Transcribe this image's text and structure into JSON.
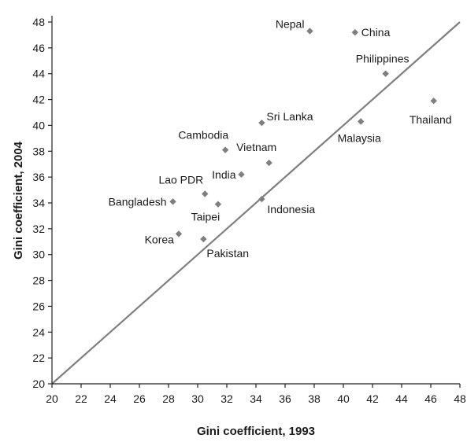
{
  "chart_data": {
    "type": "scatter",
    "xlabel": "Gini coefficient, 1993",
    "ylabel": "Gini coefficient, 2004",
    "xlim": [
      20,
      48
    ],
    "ylim": [
      20,
      48
    ],
    "xticks": [
      20,
      22,
      24,
      26,
      28,
      30,
      32,
      34,
      36,
      38,
      40,
      42,
      44,
      46,
      48
    ],
    "yticks": [
      20,
      22,
      24,
      26,
      28,
      30,
      32,
      34,
      36,
      38,
      40,
      42,
      44,
      46,
      48
    ],
    "grid": false,
    "reference_line": {
      "from": [
        20,
        20
      ],
      "to": [
        48,
        48
      ],
      "color": "#7f7f7f"
    },
    "marker_color": "#7f7f7f",
    "points": [
      {
        "label": "Nepal",
        "x": 37.7,
        "y": 47.3
      },
      {
        "label": "China",
        "x": 40.8,
        "y": 47.2
      },
      {
        "label": "Philippines",
        "x": 42.9,
        "y": 44.0
      },
      {
        "label": "Thailand",
        "x": 46.2,
        "y": 41.9
      },
      {
        "label": "Malaysia",
        "x": 41.2,
        "y": 40.3
      },
      {
        "label": "Sri Lanka",
        "x": 34.4,
        "y": 40.2
      },
      {
        "label": "Cambodia",
        "x": 31.9,
        "y": 38.1
      },
      {
        "label": "Vietnam",
        "x": 34.9,
        "y": 37.1
      },
      {
        "label": "India",
        "x": 33.0,
        "y": 36.2
      },
      {
        "label": "Lao PDR",
        "x": 30.5,
        "y": 34.7
      },
      {
        "label": "Bangladesh",
        "x": 28.3,
        "y": 34.1
      },
      {
        "label": "Taipei",
        "x": 31.4,
        "y": 33.9
      },
      {
        "label": "Indonesia",
        "x": 34.4,
        "y": 34.3
      },
      {
        "label": "Korea",
        "x": 28.7,
        "y": 31.6
      },
      {
        "label": "Pakistan",
        "x": 30.4,
        "y": 31.2
      }
    ]
  }
}
